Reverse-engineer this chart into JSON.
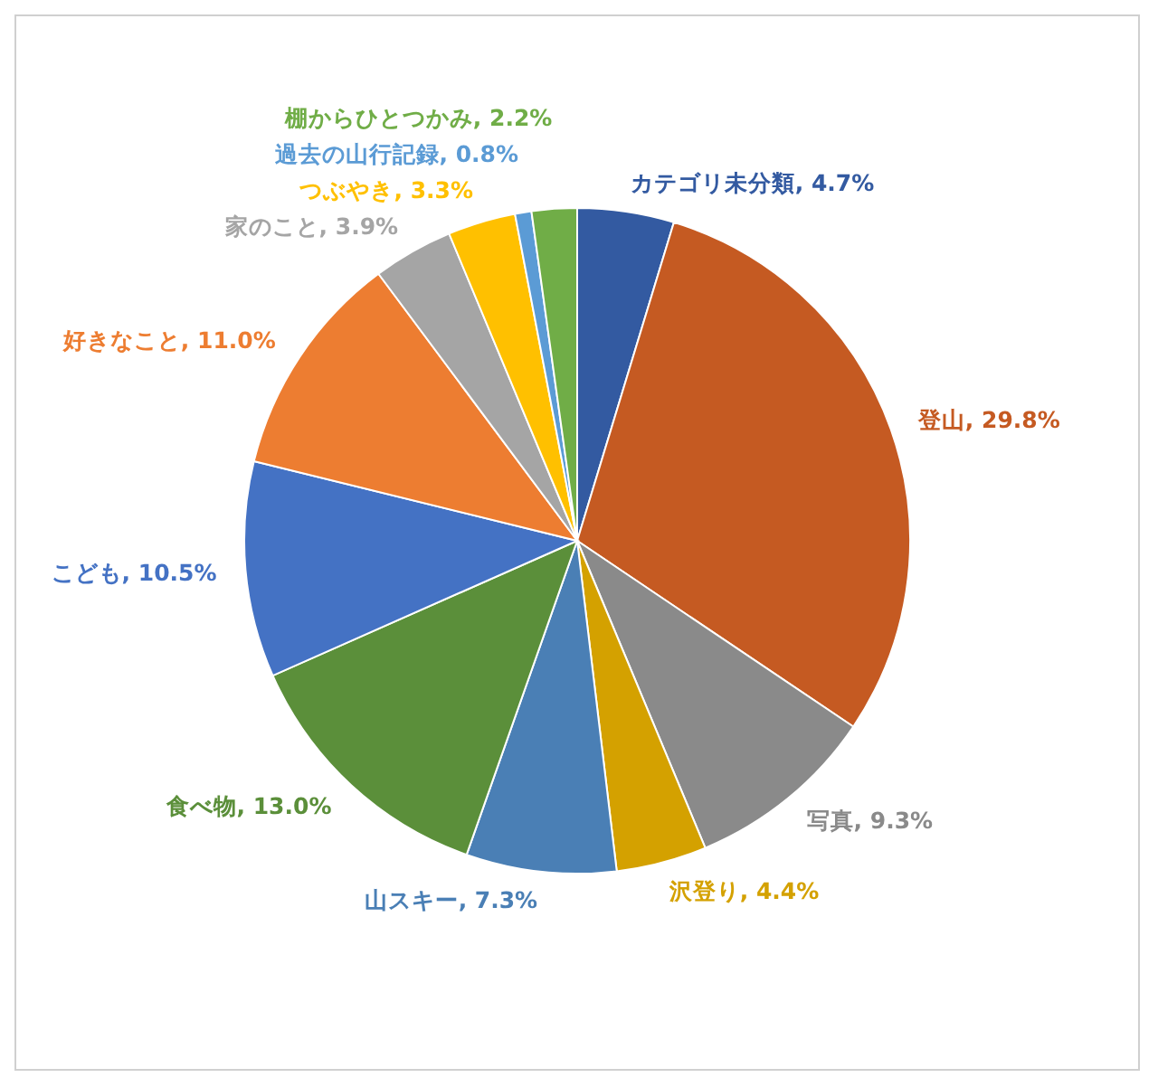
{
  "chart_data": {
    "type": "pie",
    "categories": [
      "カテゴリ未分類",
      "登山",
      "写真",
      "沢登り",
      "山スキー",
      "食べ物",
      "こども",
      "好きなこと",
      "家のこと",
      "つぶやき",
      "過去の山行記録",
      "棚からひとつかみ"
    ],
    "values": [
      4.7,
      29.8,
      9.3,
      4.4,
      7.3,
      13.0,
      10.5,
      11.0,
      3.9,
      3.3,
      0.8,
      2.2
    ],
    "value_labels": [
      "4.7%",
      "29.8%",
      "9.3%",
      "4.4%",
      "7.3%",
      "13.0%",
      "10.5%",
      "11.0%",
      "3.9%",
      "3.3%",
      "0.8%",
      "2.2%"
    ],
    "colors": [
      "#335aa1",
      "#c55a22",
      "#8a8a8a",
      "#d4a100",
      "#4a7fb5",
      "#5b8f3a",
      "#4472c4",
      "#ed7d31",
      "#a5a5a5",
      "#ffc000",
      "#5b9bd5",
      "#70ad47"
    ]
  }
}
